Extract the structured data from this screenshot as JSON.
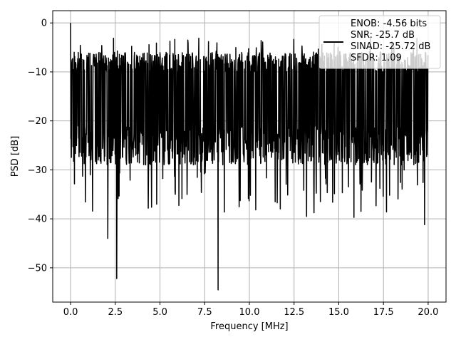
{
  "chart_data": {
    "type": "line",
    "title": "",
    "xlabel": "Frequency [MHz]",
    "ylabel": "PSD [dB]",
    "xlim": [
      -1.0,
      21.0
    ],
    "ylim": [
      -57.0,
      2.5
    ],
    "xticks": [
      0.0,
      2.5,
      5.0,
      7.5,
      10.0,
      12.5,
      15.0,
      17.5,
      20.0
    ],
    "xtick_labels": [
      "0.0",
      "2.5",
      "5.0",
      "7.5",
      "10.0",
      "12.5",
      "15.0",
      "17.5",
      "20.0"
    ],
    "yticks": [
      0,
      -10,
      -20,
      -30,
      -40,
      -50
    ],
    "ytick_labels": [
      "0",
      "−10",
      "−20",
      "−30",
      "−40",
      "−50"
    ],
    "grid": true,
    "legend_position": "top-right",
    "series": [
      {
        "color": "#000000",
        "x_range": [
          0.0,
          20.0
        ],
        "band_upper_approx": -5,
        "band_lower_approx": -25,
        "notable_points": [
          {
            "x": 0.0,
            "y": 0.0
          },
          {
            "x": 2.58,
            "y": -52.2
          },
          {
            "x": 8.25,
            "y": -54.5
          },
          {
            "x": 2.08,
            "y": -44.0
          },
          {
            "x": 19.8,
            "y": -41.2
          },
          {
            "x": 15.85,
            "y": -39.7
          }
        ]
      }
    ],
    "legend_lines": [
      "ENOB: -4.56 bits",
      "SNR: -25.7 dB",
      "SINAD: -25.72 dB",
      "SFDR: 1.09"
    ]
  },
  "colors": {
    "line": "#000000",
    "grid": "#b0b0b0",
    "axes": "#000000",
    "legend_border": "#cccccc",
    "background": "#ffffff"
  }
}
